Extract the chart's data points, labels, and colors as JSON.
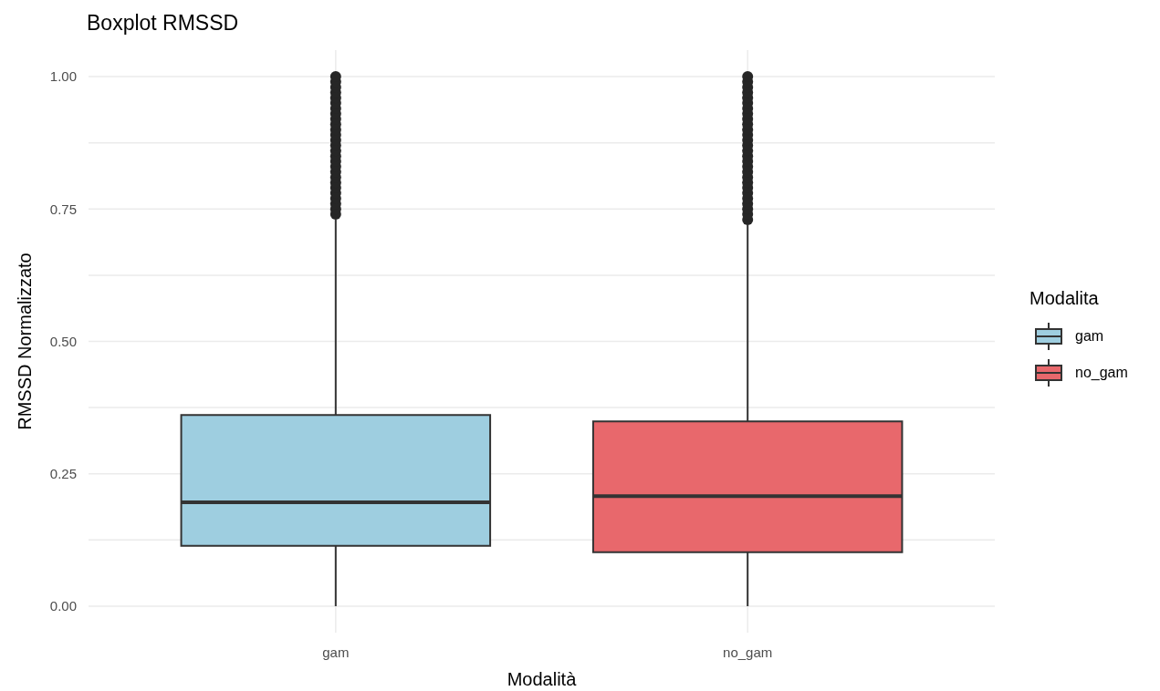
{
  "chart_data": {
    "type": "box",
    "title": "Boxplot RMSSD",
    "xlabel": "Modalità",
    "ylabel": "RMSSD Normalizzato",
    "legend_title": "Modalita",
    "categories": [
      "gam",
      "no_gam"
    ],
    "series": [
      {
        "name": "gam",
        "color": "#9ecee0",
        "boxes": [
          {
            "low": 0,
            "q1": 0.114,
            "median": 0.196,
            "q3": 0.361,
            "high": 0.73,
            "outliers": [
              0.74,
              0.75,
              0.76,
              0.77,
              0.78,
              0.79,
              0.8,
              0.81,
              0.82,
              0.83,
              0.84,
              0.85,
              0.86,
              0.87,
              0.88,
              0.89,
              0.9,
              0.91,
              0.92,
              0.93,
              0.94,
              0.95,
              0.96,
              0.97,
              0.98,
              0.99,
              1.0
            ]
          },
          null
        ]
      },
      {
        "name": "no_gam",
        "color": "#e8686c",
        "boxes": [
          null,
          {
            "low": 0,
            "q1": 0.102,
            "median": 0.208,
            "q3": 0.349,
            "high": 0.72,
            "outliers": [
              0.73,
              0.74,
              0.75,
              0.76,
              0.77,
              0.78,
              0.79,
              0.8,
              0.81,
              0.82,
              0.83,
              0.84,
              0.85,
              0.86,
              0.87,
              0.88,
              0.89,
              0.9,
              0.91,
              0.92,
              0.93,
              0.94,
              0.95,
              0.96,
              0.97,
              0.98,
              0.99,
              1.0
            ]
          }
        ]
      }
    ],
    "ylim": [
      -0.05,
      1.05
    ],
    "yticks": [
      {
        "value": 0,
        "label": "0.00"
      },
      {
        "value": 0.125,
        "label": null
      },
      {
        "value": 0.25,
        "label": "0.25"
      },
      {
        "value": 0.375,
        "label": null
      },
      {
        "value": 0.5,
        "label": "0.50"
      },
      {
        "value": 0.625,
        "label": null
      },
      {
        "value": 0.75,
        "label": "0.75"
      },
      {
        "value": 0.875,
        "label": null
      },
      {
        "value": 1,
        "label": "1.00"
      }
    ],
    "grid": true,
    "legend": "right"
  }
}
